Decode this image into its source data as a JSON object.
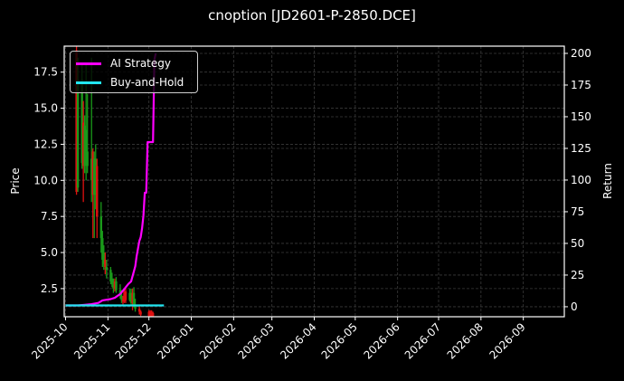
{
  "title": "cnoption [JD2601-P-2850.DCE]",
  "colors": {
    "background": "#000000",
    "up_candle": "#1a9a1a",
    "down_candle": "#e01010",
    "ai_strategy": "#ff00ff",
    "buy_and_hold": "#22e5f0",
    "grid": "#3a3a3a",
    "axis": "#ffffff"
  },
  "legend": {
    "items": [
      {
        "label": "AI Strategy",
        "color": "#ff00ff"
      },
      {
        "label": "Buy-and-Hold",
        "color": "#22e5f0"
      }
    ]
  },
  "chart_data": {
    "type": "line",
    "title": "cnoption [JD2601-P-2850.DCE]",
    "xlabel": "",
    "ylabel": "Price",
    "y2label": "Return",
    "x_ticks": [
      "2025-10",
      "2025-11",
      "2025-12",
      "2026-01",
      "2026-02",
      "2026-03",
      "2026-04",
      "2026-05",
      "2026-06",
      "2026-07",
      "2026-08",
      "2026-09"
    ],
    "y_ticks": [
      2.5,
      5.0,
      7.5,
      10.0,
      12.5,
      15.0,
      17.5
    ],
    "y2_ticks": [
      0,
      25,
      50,
      75,
      100,
      125,
      150,
      175,
      200
    ],
    "ylim": [
      0.55,
      19.3
    ],
    "y2lim": [
      -7.9,
      205.7
    ],
    "xlim": [
      "2025-09-30",
      "2026-10-01"
    ],
    "grid": true,
    "legend_position": "upper left",
    "candlesticks": [
      {
        "date": "2025-10-09",
        "open": 19.0,
        "high": 19.3,
        "low": 9.0,
        "close": 9.2,
        "dir": "down"
      },
      {
        "date": "2025-10-10",
        "open": 9.5,
        "high": 18.5,
        "low": 9.2,
        "close": 17.0,
        "dir": "up"
      },
      {
        "date": "2025-10-13",
        "open": 17.0,
        "high": 18.0,
        "low": 10.8,
        "close": 11.2,
        "dir": "up"
      },
      {
        "date": "2025-10-14",
        "open": 14.0,
        "high": 15.5,
        "low": 8.5,
        "close": 11.0,
        "dir": "down"
      },
      {
        "date": "2025-10-15",
        "open": 11.0,
        "high": 14.5,
        "low": 10.5,
        "close": 13.8,
        "dir": "up"
      },
      {
        "date": "2025-10-16",
        "open": 13.5,
        "high": 18.0,
        "low": 10.0,
        "close": 12.0,
        "dir": "up"
      },
      {
        "date": "2025-10-17",
        "open": 12.0,
        "high": 16.0,
        "low": 10.5,
        "close": 11.0,
        "dir": "up"
      },
      {
        "date": "2025-10-20",
        "open": 11.5,
        "high": 18.5,
        "low": 8.5,
        "close": 10.0,
        "dir": "up"
      },
      {
        "date": "2025-10-21",
        "open": 12.0,
        "high": 12.2,
        "low": 6.0,
        "close": 9.0,
        "dir": "down"
      },
      {
        "date": "2025-10-22",
        "open": 9.0,
        "high": 12.0,
        "low": 6.0,
        "close": 11.5,
        "dir": "up"
      },
      {
        "date": "2025-10-23",
        "open": 11.5,
        "high": 12.5,
        "low": 8.0,
        "close": 11.0,
        "dir": "up"
      },
      {
        "date": "2025-10-24",
        "open": 11.0,
        "high": 11.5,
        "low": 6.0,
        "close": 7.5,
        "dir": "down"
      },
      {
        "date": "2025-10-27",
        "open": 7.5,
        "high": 8.5,
        "low": 5.0,
        "close": 6.0,
        "dir": "up"
      },
      {
        "date": "2025-10-28",
        "open": 6.0,
        "high": 6.5,
        "low": 4.0,
        "close": 4.5,
        "dir": "up"
      },
      {
        "date": "2025-10-29",
        "open": 5.0,
        "high": 5.5,
        "low": 3.8,
        "close": 4.2,
        "dir": "up"
      },
      {
        "date": "2025-10-30",
        "open": 4.5,
        "high": 5.0,
        "low": 3.5,
        "close": 4.0,
        "dir": "down"
      },
      {
        "date": "2025-10-31",
        "open": 4.0,
        "high": 4.5,
        "low": 3.2,
        "close": 3.8,
        "dir": "up"
      },
      {
        "date": "2025-11-03",
        "open": 3.8,
        "high": 4.0,
        "low": 2.8,
        "close": 3.0,
        "dir": "up"
      },
      {
        "date": "2025-11-04",
        "open": 3.2,
        "high": 3.6,
        "low": 2.6,
        "close": 2.8,
        "dir": "up"
      },
      {
        "date": "2025-11-05",
        "open": 2.8,
        "high": 3.2,
        "low": 2.2,
        "close": 2.5,
        "dir": "up"
      },
      {
        "date": "2025-11-06",
        "open": 2.5,
        "high": 3.2,
        "low": 2.3,
        "close": 3.0,
        "dir": "down"
      },
      {
        "date": "2025-11-07",
        "open": 3.0,
        "high": 3.3,
        "low": 2.2,
        "close": 2.4,
        "dir": "up"
      },
      {
        "date": "2025-11-10",
        "open": 2.4,
        "high": 2.8,
        "low": 1.8,
        "close": 2.0,
        "dir": "up"
      },
      {
        "date": "2025-11-11",
        "open": 2.0,
        "high": 2.4,
        "low": 1.5,
        "close": 1.7,
        "dir": "up"
      },
      {
        "date": "2025-11-12",
        "open": 1.7,
        "high": 2.0,
        "low": 1.4,
        "close": 1.6,
        "dir": "down"
      },
      {
        "date": "2025-11-13",
        "open": 1.6,
        "high": 2.5,
        "low": 1.5,
        "close": 2.3,
        "dir": "down"
      },
      {
        "date": "2025-11-14",
        "open": 2.3,
        "high": 2.6,
        "low": 1.5,
        "close": 1.7,
        "dir": "down"
      },
      {
        "date": "2025-11-17",
        "open": 1.7,
        "high": 2.5,
        "low": 1.6,
        "close": 2.2,
        "dir": "up"
      },
      {
        "date": "2025-11-18",
        "open": 2.2,
        "high": 2.5,
        "low": 1.3,
        "close": 1.5,
        "dir": "up"
      },
      {
        "date": "2025-11-19",
        "open": 1.5,
        "high": 2.5,
        "low": 1.0,
        "close": 2.2,
        "dir": "down"
      },
      {
        "date": "2025-11-20",
        "open": 2.2,
        "high": 2.6,
        "low": 1.2,
        "close": 1.4,
        "dir": "up"
      },
      {
        "date": "2025-11-21",
        "open": 1.4,
        "high": 1.8,
        "low": 0.9,
        "close": 1.1,
        "dir": "up"
      },
      {
        "date": "2025-11-24",
        "open": 1.1,
        "high": 1.4,
        "low": 0.7,
        "close": 0.9,
        "dir": "down"
      },
      {
        "date": "2025-11-25",
        "open": 0.9,
        "high": 1.0,
        "low": 0.6,
        "close": 0.7,
        "dir": "down"
      },
      {
        "date": "2025-12-01",
        "open": 0.9,
        "high": 1.0,
        "low": 0.55,
        "close": 0.6,
        "dir": "down"
      },
      {
        "date": "2025-12-02",
        "open": 0.6,
        "high": 1.0,
        "low": 0.55,
        "close": 0.9,
        "dir": "down"
      },
      {
        "date": "2025-12-03",
        "open": 0.9,
        "high": 1.0,
        "low": 0.55,
        "close": 0.6,
        "dir": "down"
      },
      {
        "date": "2025-12-04",
        "open": 0.6,
        "high": 0.9,
        "low": 0.55,
        "close": 0.8,
        "dir": "down"
      }
    ],
    "series": [
      {
        "name": "AI Strategy",
        "color": "#ff00ff",
        "axis": "right",
        "x": [
          "2025-10-01",
          "2025-10-10",
          "2025-10-15",
          "2025-10-20",
          "2025-10-25",
          "2025-10-28",
          "2025-11-03",
          "2025-11-06",
          "2025-11-10",
          "2025-11-13",
          "2025-11-16",
          "2025-11-18",
          "2025-11-20",
          "2025-11-21",
          "2025-11-22",
          "2025-11-24",
          "2025-11-25",
          "2025-11-26",
          "2025-11-27",
          "2025-11-28",
          "2025-11-29",
          "2025-11-30",
          "2025-12-01",
          "2025-12-04",
          "2025-12-05",
          "2025-12-06"
        ],
        "values": [
          1,
          1,
          1.5,
          2,
          3,
          5,
          6,
          7,
          10,
          14,
          18,
          20,
          28,
          32,
          40,
          52,
          55,
          62,
          72,
          90,
          90,
          130,
          130,
          130,
          195,
          200
        ]
      },
      {
        "name": "Buy-and-Hold",
        "color": "#22e5f0",
        "axis": "right",
        "x": [
          "2025-10-01",
          "2025-12-12"
        ],
        "values": [
          1,
          1
        ]
      }
    ]
  }
}
